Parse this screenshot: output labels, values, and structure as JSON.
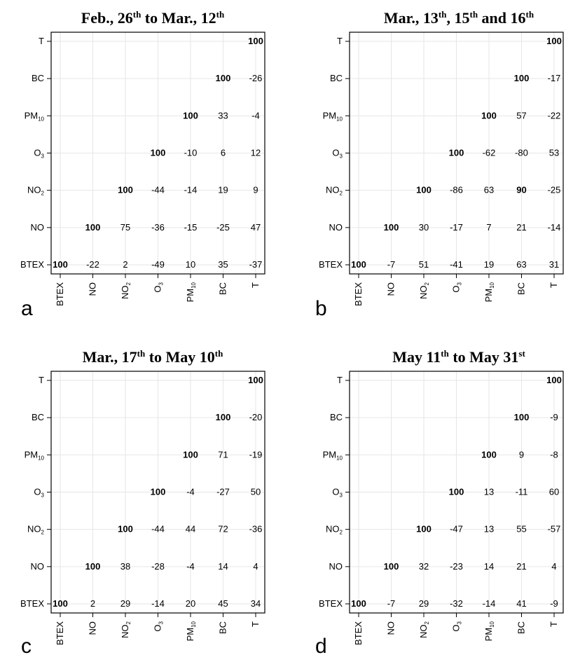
{
  "chart_data": [
    {
      "type": "heatmap",
      "panel": "a",
      "title": "Feb., 26th to Mar., 12th",
      "title_parts": [
        [
          "Feb., 26",
          ""
        ],
        [
          "th",
          "sup"
        ],
        [
          " to Mar., 12",
          ""
        ],
        [
          "th",
          "sup"
        ]
      ],
      "x_labels": [
        "BTEX",
        "NO",
        "NO2",
        "O3",
        "PM10",
        "BC",
        "T"
      ],
      "y_labels": [
        "T",
        "BC",
        "PM10",
        "O3",
        "NO2",
        "NO",
        "BTEX"
      ],
      "values": [
        [
          null,
          null,
          null,
          null,
          null,
          null,
          100
        ],
        [
          null,
          null,
          null,
          null,
          null,
          100,
          -26
        ],
        [
          null,
          null,
          null,
          null,
          100,
          33,
          -4
        ],
        [
          null,
          null,
          null,
          100,
          -10,
          6,
          12
        ],
        [
          null,
          null,
          100,
          -44,
          -14,
          19,
          9
        ],
        [
          null,
          100,
          75,
          -36,
          -15,
          -25,
          47
        ],
        [
          100,
          -22,
          2,
          -49,
          10,
          35,
          -37
        ]
      ]
    },
    {
      "type": "heatmap",
      "panel": "b",
      "title": "Mar., 13th, 15th and 16th",
      "title_parts": [
        [
          "Mar., 13",
          ""
        ],
        [
          "th",
          "sup"
        ],
        [
          ", 15",
          ""
        ],
        [
          "th",
          "sup"
        ],
        [
          " and 16",
          ""
        ],
        [
          "th",
          "sup"
        ]
      ],
      "x_labels": [
        "BTEX",
        "NO",
        "NO2",
        "O3",
        "PM10",
        "BC",
        "T"
      ],
      "y_labels": [
        "T",
        "BC",
        "PM10",
        "O3",
        "NO2",
        "NO",
        "BTEX"
      ],
      "values": [
        [
          null,
          null,
          null,
          null,
          null,
          null,
          100
        ],
        [
          null,
          null,
          null,
          null,
          null,
          100,
          -17
        ],
        [
          null,
          null,
          null,
          null,
          100,
          57,
          -22
        ],
        [
          null,
          null,
          null,
          100,
          -62,
          -80,
          53
        ],
        [
          null,
          null,
          100,
          -86,
          63,
          90,
          -25
        ],
        [
          null,
          100,
          30,
          -17,
          7,
          21,
          -14
        ],
        [
          100,
          -7,
          51,
          -41,
          19,
          63,
          31
        ]
      ],
      "bold_cells": [
        [
          4,
          5
        ]
      ]
    },
    {
      "type": "heatmap",
      "panel": "c",
      "title": "Mar., 17th to May 10th",
      "title_parts": [
        [
          "Mar., 17",
          ""
        ],
        [
          "th",
          "sup"
        ],
        [
          " to May 10",
          ""
        ],
        [
          "th",
          "sup"
        ]
      ],
      "x_labels": [
        "BTEX",
        "NO",
        "NO2",
        "O3",
        "PM10",
        "BC",
        "T"
      ],
      "y_labels": [
        "T",
        "BC",
        "PM10",
        "O3",
        "NO2",
        "NO",
        "BTEX"
      ],
      "values": [
        [
          null,
          null,
          null,
          null,
          null,
          null,
          100
        ],
        [
          null,
          null,
          null,
          null,
          null,
          100,
          -20
        ],
        [
          null,
          null,
          null,
          null,
          100,
          71,
          -19
        ],
        [
          null,
          null,
          null,
          100,
          -4,
          -27,
          50
        ],
        [
          null,
          null,
          100,
          -44,
          44,
          72,
          -36
        ],
        [
          null,
          100,
          38,
          -28,
          -4,
          14,
          4
        ],
        [
          100,
          2,
          29,
          -14,
          20,
          45,
          34
        ]
      ]
    },
    {
      "type": "heatmap",
      "panel": "d",
      "title": "May 11th to May 31st",
      "title_parts": [
        [
          "May 11",
          ""
        ],
        [
          "th",
          "sup"
        ],
        [
          " to May 31",
          ""
        ],
        [
          "st",
          "sup"
        ]
      ],
      "x_labels": [
        "BTEX",
        "NO",
        "NO2",
        "O3",
        "PM10",
        "BC",
        "T"
      ],
      "y_labels": [
        "T",
        "BC",
        "PM10",
        "O3",
        "NO2",
        "NO",
        "BTEX"
      ],
      "values": [
        [
          null,
          null,
          null,
          null,
          null,
          null,
          100
        ],
        [
          null,
          null,
          null,
          null,
          null,
          100,
          -9
        ],
        [
          null,
          null,
          null,
          null,
          100,
          9,
          -8
        ],
        [
          null,
          null,
          null,
          100,
          13,
          -11,
          60
        ],
        [
          null,
          null,
          100,
          -47,
          13,
          55,
          -57
        ],
        [
          null,
          100,
          32,
          -23,
          14,
          21,
          4
        ],
        [
          100,
          -7,
          29,
          -32,
          -14,
          41,
          -9
        ]
      ]
    }
  ],
  "label_subscripts": {
    "NO2": [
      "NO",
      "2"
    ],
    "O3": [
      "O",
      "3"
    ],
    "PM10": [
      "PM",
      "10"
    ]
  },
  "colors": {
    "frame": "#000000",
    "grid": "#e6e6e6",
    "text": "#000000"
  }
}
